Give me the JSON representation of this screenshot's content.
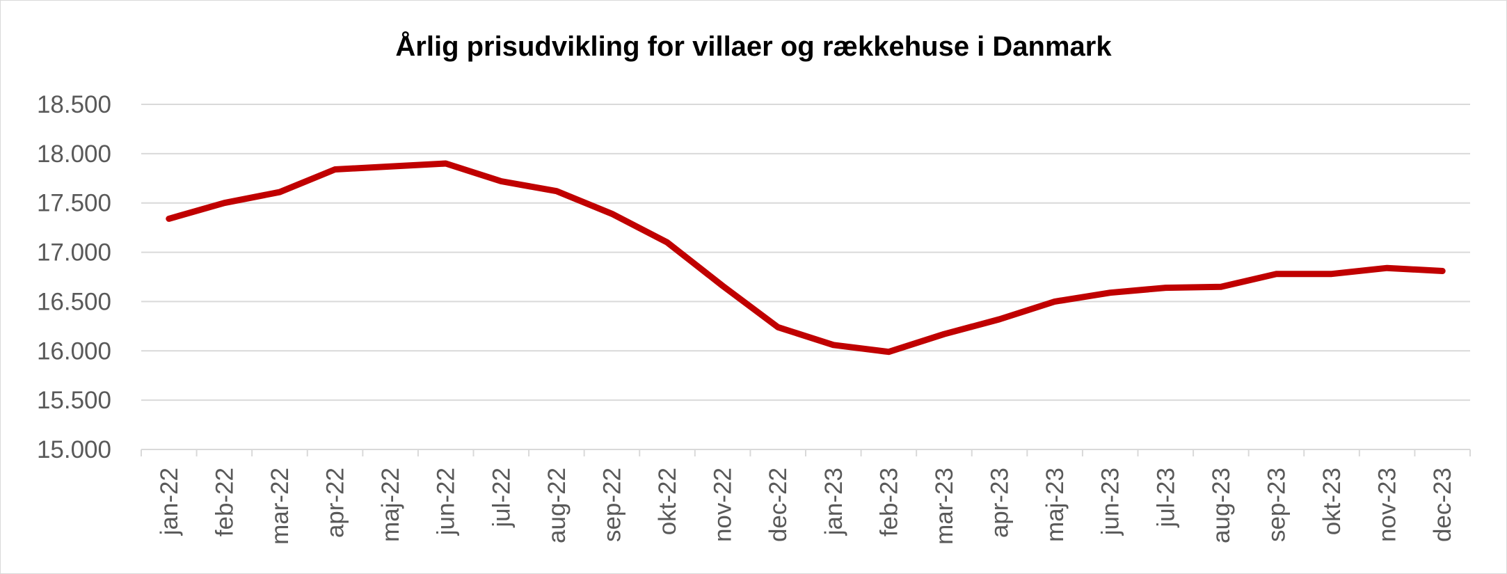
{
  "chart_data": {
    "type": "line",
    "title": "Årlig prisudvikling for villaer og rækkehuse i Danmark",
    "xlabel": "",
    "ylabel": "",
    "ylim": [
      15000,
      18500
    ],
    "yticks": [
      15000,
      15500,
      16000,
      16500,
      17000,
      17500,
      18000,
      18500
    ],
    "ytick_labels": [
      "15.000",
      "15.500",
      "16.000",
      "16.500",
      "17.000",
      "17.500",
      "18.000",
      "18.500"
    ],
    "categories": [
      "jan-22",
      "feb-22",
      "mar-22",
      "apr-22",
      "maj-22",
      "jun-22",
      "jul-22",
      "aug-22",
      "sep-22",
      "okt-22",
      "nov-22",
      "dec-22",
      "jan-23",
      "feb-23",
      "mar-23",
      "apr-23",
      "maj-23",
      "jun-23",
      "jul-23",
      "aug-23",
      "sep-23",
      "okt-23",
      "nov-23",
      "dec-23"
    ],
    "series": [
      {
        "values": [
          17340,
          17500,
          17610,
          17840,
          17870,
          17900,
          17720,
          17620,
          17390,
          17100,
          16660,
          16240,
          16060,
          15990,
          16170,
          16320,
          16500,
          16590,
          16640,
          16650,
          16780,
          16780,
          16840,
          16810
        ],
        "color": "#c00000"
      }
    ],
    "grid": true,
    "legend": "none"
  }
}
